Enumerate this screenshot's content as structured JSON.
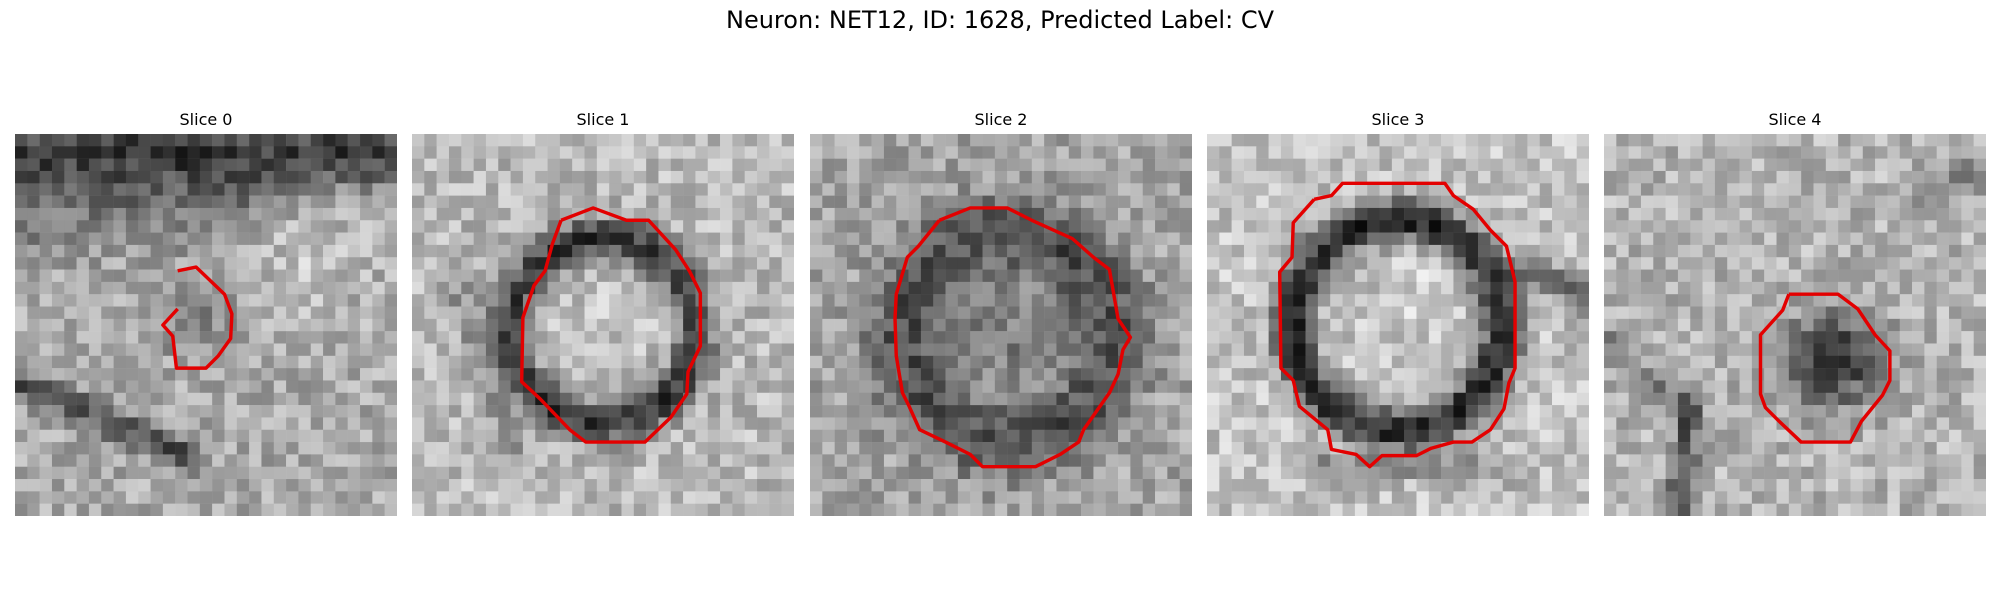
{
  "figure": {
    "title": "Neuron: NET12, ID: 1628, Predicted Label: CV",
    "contour_color": "#e30000"
  },
  "panels": [
    {
      "title": "Slice 0"
    },
    {
      "title": "Slice 1"
    },
    {
      "title": "Slice 2"
    },
    {
      "title": "Slice 3"
    },
    {
      "title": "Slice 4"
    }
  ]
}
